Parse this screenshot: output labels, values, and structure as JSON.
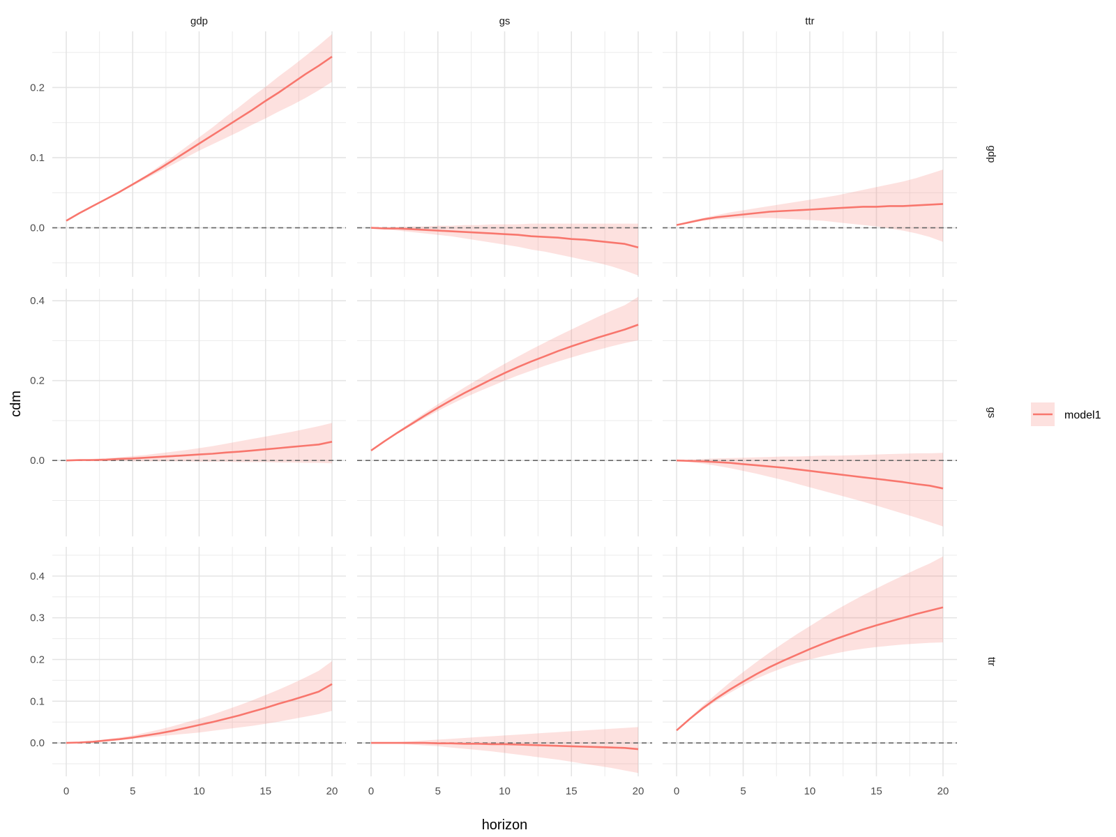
{
  "chart_data": {
    "type": "line",
    "xlabel": "horizon",
    "ylabel": "cdm",
    "facet_columns": [
      "gdp",
      "gs",
      "ttr"
    ],
    "facet_rows": [
      "gdp",
      "gs",
      "ttr"
    ],
    "x": [
      0,
      1,
      2,
      3,
      4,
      5,
      6,
      7,
      8,
      9,
      10,
      11,
      12,
      13,
      14,
      15,
      16,
      17,
      18,
      19,
      20
    ],
    "xticks": [
      0,
      5,
      10,
      15,
      20
    ],
    "xlim": [
      0,
      20
    ],
    "rows": [
      {
        "name": "gdp",
        "ylim": [
          -0.07,
          0.28
        ],
        "yticks": [
          0.0,
          0.1,
          0.2
        ],
        "ytick_labels": [
          "0.0",
          "0.1",
          "0.2"
        ]
      },
      {
        "name": "gs",
        "ylim": [
          -0.19,
          0.43
        ],
        "yticks": [
          0.0,
          0.2,
          0.4
        ],
        "ytick_labels": [
          "0.0",
          "0.2",
          "0.4"
        ]
      },
      {
        "name": "ttr",
        "ylim": [
          -0.08,
          0.47
        ],
        "yticks": [
          0.0,
          0.1,
          0.2,
          0.3,
          0.4
        ],
        "ytick_labels": [
          "0.0",
          "0.1",
          "0.2",
          "0.3",
          "0.4"
        ]
      }
    ],
    "reference_line": {
      "y": 0,
      "style": "dashed",
      "color": "#666666"
    },
    "series_color": "#F8766D",
    "band_color": "#F8766D",
    "band_opacity": 0.22,
    "grid": true,
    "legend_position": "right",
    "legend": [
      {
        "label": "model1",
        "color": "#F8766D"
      }
    ],
    "panels": [
      {
        "row": "gdp",
        "col": "gdp",
        "mean": [
          0.01,
          0.021,
          0.031,
          0.041,
          0.051,
          0.062,
          0.073,
          0.084,
          0.096,
          0.108,
          0.12,
          0.132,
          0.144,
          0.156,
          0.168,
          0.181,
          0.193,
          0.206,
          0.219,
          0.231,
          0.244
        ],
        "lower": [
          0.01,
          0.021,
          0.031,
          0.041,
          0.05,
          0.06,
          0.07,
          0.08,
          0.09,
          0.1,
          0.11,
          0.119,
          0.128,
          0.137,
          0.147,
          0.156,
          0.166,
          0.175,
          0.185,
          0.196,
          0.208
        ],
        "upper": [
          0.01,
          0.021,
          0.031,
          0.041,
          0.051,
          0.063,
          0.075,
          0.088,
          0.101,
          0.115,
          0.129,
          0.143,
          0.158,
          0.172,
          0.187,
          0.201,
          0.216,
          0.23,
          0.245,
          0.26,
          0.276
        ]
      },
      {
        "row": "gdp",
        "col": "gs",
        "mean": [
          0.0,
          -0.001,
          -0.001,
          -0.002,
          -0.003,
          -0.004,
          -0.005,
          -0.006,
          -0.007,
          -0.008,
          -0.009,
          -0.01,
          -0.012,
          -0.013,
          -0.014,
          -0.016,
          -0.017,
          -0.019,
          -0.021,
          -0.023,
          -0.028
        ],
        "lower": [
          0.0,
          -0.002,
          -0.004,
          -0.006,
          -0.008,
          -0.01,
          -0.012,
          -0.015,
          -0.018,
          -0.021,
          -0.024,
          -0.027,
          -0.031,
          -0.034,
          -0.038,
          -0.042,
          -0.046,
          -0.05,
          -0.055,
          -0.061,
          -0.068
        ],
        "upper": [
          0.0,
          0.0,
          0.001,
          0.002,
          0.002,
          0.003,
          0.003,
          0.004,
          0.004,
          0.005,
          0.005,
          0.005,
          0.006,
          0.006,
          0.006,
          0.006,
          0.006,
          0.006,
          0.006,
          0.006,
          0.006
        ]
      },
      {
        "row": "gdp",
        "col": "ttr",
        "mean": [
          0.004,
          0.008,
          0.012,
          0.015,
          0.017,
          0.019,
          0.021,
          0.023,
          0.024,
          0.025,
          0.026,
          0.027,
          0.028,
          0.029,
          0.03,
          0.03,
          0.031,
          0.031,
          0.032,
          0.033,
          0.034
        ],
        "lower": [
          0.004,
          0.007,
          0.01,
          0.012,
          0.013,
          0.014,
          0.014,
          0.014,
          0.013,
          0.012,
          0.011,
          0.01,
          0.008,
          0.006,
          0.004,
          0.002,
          -0.001,
          -0.004,
          -0.008,
          -0.013,
          -0.02
        ],
        "upper": [
          0.004,
          0.01,
          0.014,
          0.018,
          0.022,
          0.025,
          0.028,
          0.031,
          0.034,
          0.037,
          0.04,
          0.043,
          0.046,
          0.05,
          0.054,
          0.058,
          0.062,
          0.066,
          0.071,
          0.077,
          0.083
        ]
      },
      {
        "row": "gs",
        "col": "gdp",
        "mean": [
          0.0,
          0.001,
          0.001,
          0.002,
          0.004,
          0.005,
          0.007,
          0.009,
          0.011,
          0.013,
          0.015,
          0.017,
          0.02,
          0.022,
          0.025,
          0.028,
          0.031,
          0.034,
          0.037,
          0.04,
          0.047
        ],
        "lower": [
          0.0,
          0.0,
          -0.001,
          -0.001,
          -0.001,
          -0.002,
          -0.002,
          -0.002,
          -0.002,
          -0.002,
          -0.003,
          -0.003,
          -0.003,
          -0.004,
          -0.004,
          -0.004,
          -0.005,
          -0.005,
          -0.006,
          -0.006,
          -0.007
        ],
        "upper": [
          0.0,
          0.002,
          0.004,
          0.006,
          0.008,
          0.011,
          0.014,
          0.018,
          0.022,
          0.026,
          0.031,
          0.036,
          0.042,
          0.048,
          0.054,
          0.06,
          0.066,
          0.072,
          0.079,
          0.086,
          0.094
        ]
      },
      {
        "row": "gs",
        "col": "gs",
        "mean": [
          0.025,
          0.048,
          0.07,
          0.091,
          0.112,
          0.132,
          0.151,
          0.169,
          0.186,
          0.203,
          0.219,
          0.234,
          0.248,
          0.261,
          0.274,
          0.286,
          0.297,
          0.308,
          0.318,
          0.328,
          0.34
        ],
        "lower": [
          0.025,
          0.047,
          0.068,
          0.087,
          0.106,
          0.124,
          0.141,
          0.157,
          0.172,
          0.186,
          0.2,
          0.213,
          0.225,
          0.237,
          0.248,
          0.258,
          0.268,
          0.277,
          0.286,
          0.294,
          0.301
        ],
        "upper": [
          0.025,
          0.05,
          0.073,
          0.096,
          0.119,
          0.141,
          0.162,
          0.183,
          0.203,
          0.223,
          0.242,
          0.26,
          0.278,
          0.295,
          0.312,
          0.328,
          0.344,
          0.36,
          0.375,
          0.389,
          0.41
        ]
      },
      {
        "row": "gs",
        "col": "ttr",
        "mean": [
          0.0,
          -0.001,
          -0.002,
          -0.004,
          -0.006,
          -0.009,
          -0.012,
          -0.015,
          -0.018,
          -0.022,
          -0.026,
          -0.03,
          -0.034,
          -0.038,
          -0.042,
          -0.046,
          -0.05,
          -0.054,
          -0.059,
          -0.063,
          -0.07
        ],
        "lower": [
          0.0,
          -0.004,
          -0.008,
          -0.013,
          -0.019,
          -0.026,
          -0.033,
          -0.041,
          -0.049,
          -0.058,
          -0.067,
          -0.076,
          -0.085,
          -0.094,
          -0.103,
          -0.113,
          -0.123,
          -0.133,
          -0.143,
          -0.154,
          -0.165
        ],
        "upper": [
          0.0,
          0.002,
          0.004,
          0.005,
          0.006,
          0.007,
          0.008,
          0.009,
          0.01,
          0.01,
          0.011,
          0.012,
          0.012,
          0.013,
          0.014,
          0.015,
          0.016,
          0.017,
          0.018,
          0.018,
          0.019
        ]
      },
      {
        "row": "ttr",
        "col": "gdp",
        "mean": [
          0.0,
          0.001,
          0.003,
          0.006,
          0.009,
          0.013,
          0.018,
          0.023,
          0.029,
          0.036,
          0.043,
          0.05,
          0.058,
          0.066,
          0.075,
          0.084,
          0.094,
          0.103,
          0.113,
          0.123,
          0.141
        ],
        "lower": [
          0.0,
          0.001,
          0.002,
          0.004,
          0.007,
          0.01,
          0.013,
          0.016,
          0.019,
          0.022,
          0.025,
          0.029,
          0.033,
          0.037,
          0.041,
          0.046,
          0.051,
          0.057,
          0.063,
          0.069,
          0.077
        ],
        "upper": [
          0.0,
          0.002,
          0.005,
          0.009,
          0.013,
          0.018,
          0.025,
          0.032,
          0.04,
          0.049,
          0.058,
          0.068,
          0.079,
          0.09,
          0.102,
          0.115,
          0.128,
          0.142,
          0.157,
          0.173,
          0.196
        ]
      },
      {
        "row": "ttr",
        "col": "gs",
        "mean": [
          0.0,
          0.0,
          0.0,
          0.0,
          0.0,
          -0.001,
          -0.001,
          -0.002,
          -0.002,
          -0.003,
          -0.003,
          -0.004,
          -0.005,
          -0.006,
          -0.007,
          -0.008,
          -0.009,
          -0.01,
          -0.011,
          -0.012,
          -0.015
        ],
        "lower": [
          0.0,
          -0.001,
          -0.002,
          -0.004,
          -0.006,
          -0.008,
          -0.011,
          -0.014,
          -0.017,
          -0.02,
          -0.024,
          -0.028,
          -0.032,
          -0.036,
          -0.04,
          -0.045,
          -0.05,
          -0.055,
          -0.06,
          -0.066,
          -0.072
        ],
        "upper": [
          0.0,
          0.001,
          0.002,
          0.004,
          0.006,
          0.008,
          0.01,
          0.012,
          0.014,
          0.016,
          0.018,
          0.02,
          0.022,
          0.024,
          0.026,
          0.028,
          0.03,
          0.032,
          0.034,
          0.036,
          0.038
        ]
      },
      {
        "row": "ttr",
        "col": "ttr",
        "mean": [
          0.03,
          0.058,
          0.084,
          0.107,
          0.128,
          0.147,
          0.165,
          0.182,
          0.197,
          0.211,
          0.225,
          0.238,
          0.25,
          0.261,
          0.272,
          0.282,
          0.291,
          0.3,
          0.309,
          0.317,
          0.325
        ],
        "lower": [
          0.03,
          0.056,
          0.08,
          0.101,
          0.12,
          0.138,
          0.154,
          0.168,
          0.18,
          0.191,
          0.2,
          0.208,
          0.215,
          0.221,
          0.226,
          0.23,
          0.233,
          0.236,
          0.238,
          0.24,
          0.241
        ],
        "upper": [
          0.03,
          0.061,
          0.09,
          0.118,
          0.145,
          0.17,
          0.194,
          0.217,
          0.239,
          0.26,
          0.28,
          0.3,
          0.319,
          0.337,
          0.354,
          0.37,
          0.386,
          0.401,
          0.416,
          0.43,
          0.447
        ]
      }
    ]
  }
}
